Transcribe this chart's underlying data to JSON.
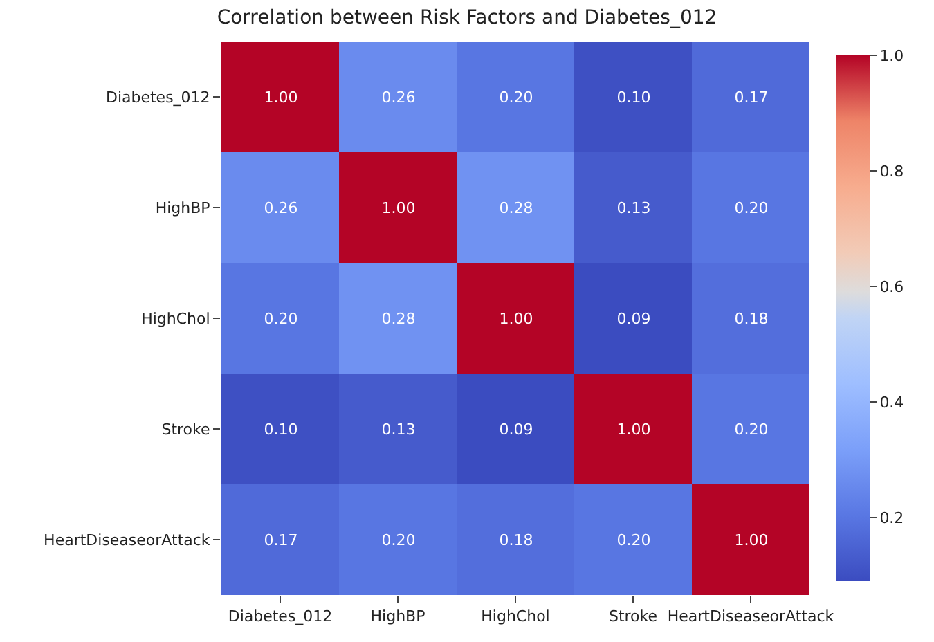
{
  "chart_data": {
    "type": "heatmap",
    "title": "Correlation between Risk Factors and Diabetes_012",
    "categories": [
      "Diabetes_012",
      "HighBP",
      "HighChol",
      "Stroke",
      "HeartDiseaseorAttack"
    ],
    "y_categories": [
      "Diabetes_012",
      "HighBP",
      "HighChol",
      "Stroke",
      "HeartDiseaseorAttack"
    ],
    "cells": [
      [
        1.0,
        0.26,
        0.2,
        0.1,
        0.17
      ],
      [
        0.26,
        1.0,
        0.28,
        0.13,
        0.2
      ],
      [
        0.2,
        0.28,
        1.0,
        0.09,
        0.18
      ],
      [
        0.1,
        0.13,
        0.09,
        1.0,
        0.2
      ],
      [
        0.17,
        0.2,
        0.18,
        0.2,
        1.0
      ]
    ],
    "cell_labels": [
      [
        "1.00",
        "0.26",
        "0.20",
        "0.10",
        "0.17"
      ],
      [
        "0.26",
        "1.00",
        "0.28",
        "0.13",
        "0.20"
      ],
      [
        "0.20",
        "0.28",
        "1.00",
        "0.09",
        "0.18"
      ],
      [
        "0.10",
        "0.13",
        "0.09",
        "1.00",
        "0.20"
      ],
      [
        "0.17",
        "0.20",
        "0.18",
        "0.20",
        "1.00"
      ]
    ],
    "clim": [
      0.09,
      1.0
    ],
    "cticks": [
      0.2,
      0.4,
      0.6,
      0.8,
      {
        "value": 1.0,
        "label": "1.0"
      }
    ]
  }
}
